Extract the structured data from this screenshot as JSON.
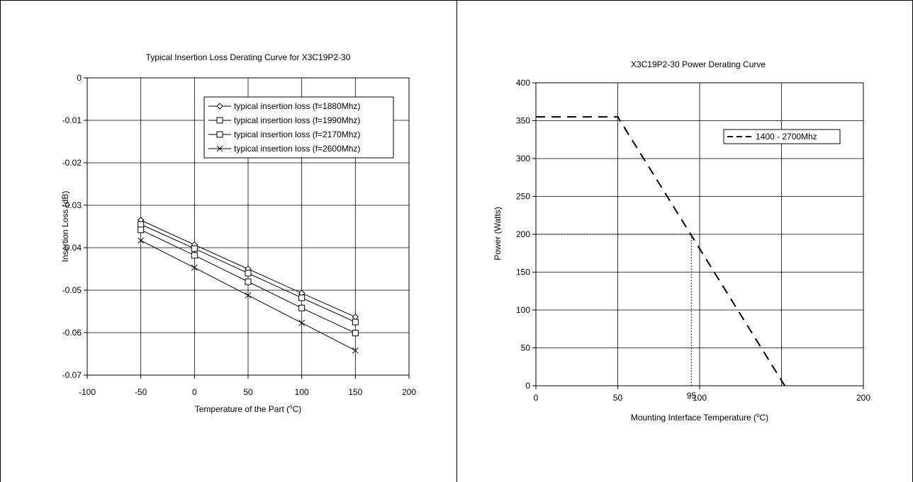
{
  "chart_data": [
    {
      "type": "line",
      "title": "Typical Insertion Loss Derating Curve for X3C19P2-30",
      "xlabel": "Temperature of the Part (",
      "xlabel_sup": "o",
      "xlabel_unit": "C)",
      "ylabel": "Insertion Loss (dB)",
      "xlim": [
        -100,
        200
      ],
      "ylim": [
        -0.07,
        0
      ],
      "xticks": [
        -100,
        -50,
        0,
        50,
        100,
        150,
        200
      ],
      "yticks": [
        0,
        -0.01,
        -0.02,
        -0.03,
        -0.04,
        -0.05,
        -0.06,
        -0.07
      ],
      "xtick_labels": [
        "-100",
        "-50",
        "0",
        "50",
        "100",
        "150",
        "200"
      ],
      "ytick_labels": [
        "0",
        "-0.01",
        "-0.02",
        "-0.03",
        "-0.04",
        "-0.05",
        "-0.06",
        "-0.07"
      ],
      "grid": true,
      "legend_position": "top-right",
      "x": [
        -50,
        0,
        50,
        100,
        150
      ],
      "series": [
        {
          "name": "typical insertion loss (f=1880Mhz)",
          "marker": "diamond",
          "values": [
            -0.0335,
            -0.0393,
            -0.045,
            -0.0507,
            -0.0563
          ]
        },
        {
          "name": "typical insertion loss (f=1990Mhz)",
          "marker": "square",
          "values": [
            -0.0345,
            -0.0402,
            -0.046,
            -0.0518,
            -0.0575
          ]
        },
        {
          "name": "typical insertion loss (f=2170Mhz)",
          "marker": "square",
          "values": [
            -0.0358,
            -0.0418,
            -0.048,
            -0.0542,
            -0.0601
          ]
        },
        {
          "name": "typical insertion loss (f=2600Mhz)",
          "marker": "x",
          "values": [
            -0.0383,
            -0.0447,
            -0.0512,
            -0.0577,
            -0.0642
          ]
        }
      ]
    },
    {
      "type": "line",
      "title": "X3C19P2-30 Power Derating Curve",
      "xlabel": "Mounting Interface Temperature (",
      "xlabel_sup": "o",
      "xlabel_unit": "C)",
      "ylabel": "Power (Watts)",
      "xlim": [
        0,
        200
      ],
      "ylim": [
        0,
        400
      ],
      "xticks": [
        0,
        50,
        100,
        200
      ],
      "yticks": [
        0,
        50,
        100,
        150,
        200,
        250,
        300,
        350,
        400
      ],
      "xtick_labels": [
        "0",
        "50",
        "100",
        "200"
      ],
      "ytick_labels": [
        "0",
        "50",
        "100",
        "150",
        "200",
        "250",
        "300",
        "350",
        "400"
      ],
      "grid_x": [
        0,
        50,
        100,
        150,
        200
      ],
      "grid": true,
      "legend_position": "top-right",
      "series": [
        {
          "name": "1400 - 2700Mhz",
          "style": "dashed",
          "color": "#000000",
          "points": [
            [
              0,
              355
            ],
            [
              50,
              355
            ],
            [
              152,
              0
            ]
          ]
        }
      ],
      "annotation": {
        "label": "95",
        "color": "#00008b",
        "points": [
          [
            0,
            200
          ],
          [
            95,
            200
          ],
          [
            95,
            0
          ]
        ]
      }
    }
  ]
}
